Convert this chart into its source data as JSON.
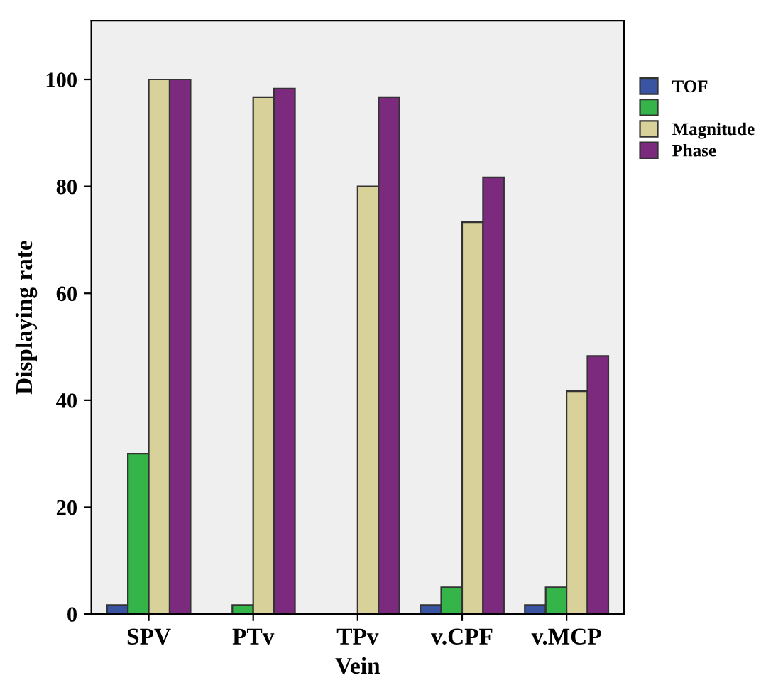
{
  "chart_data": {
    "type": "bar",
    "xlabel": "Vein",
    "ylabel": "Displaying rate",
    "categories": [
      "SPV",
      "PTv",
      "TPv",
      "v.CPF",
      "v.MCP"
    ],
    "series": [
      {
        "name": "TOF",
        "color": "#3a54a4",
        "values": [
          1.7,
          null,
          null,
          1.7,
          1.7
        ]
      },
      {
        "color": "#35b44a",
        "values": [
          30,
          1.7,
          null,
          5,
          5
        ]
      },
      {
        "name": "Magnitude",
        "color": "#d8d29a",
        "values": [
          100,
          96.7,
          80,
          73.3,
          41.7
        ]
      },
      {
        "name": "Phase",
        "color": "#7b2a7e",
        "values": [
          100,
          98.3,
          96.7,
          81.7,
          48.3
        ]
      }
    ],
    "ylim": [
      0,
      111
    ],
    "yticks": [
      0,
      20,
      40,
      60,
      80,
      100
    ],
    "grid": false,
    "legend": "top right"
  }
}
